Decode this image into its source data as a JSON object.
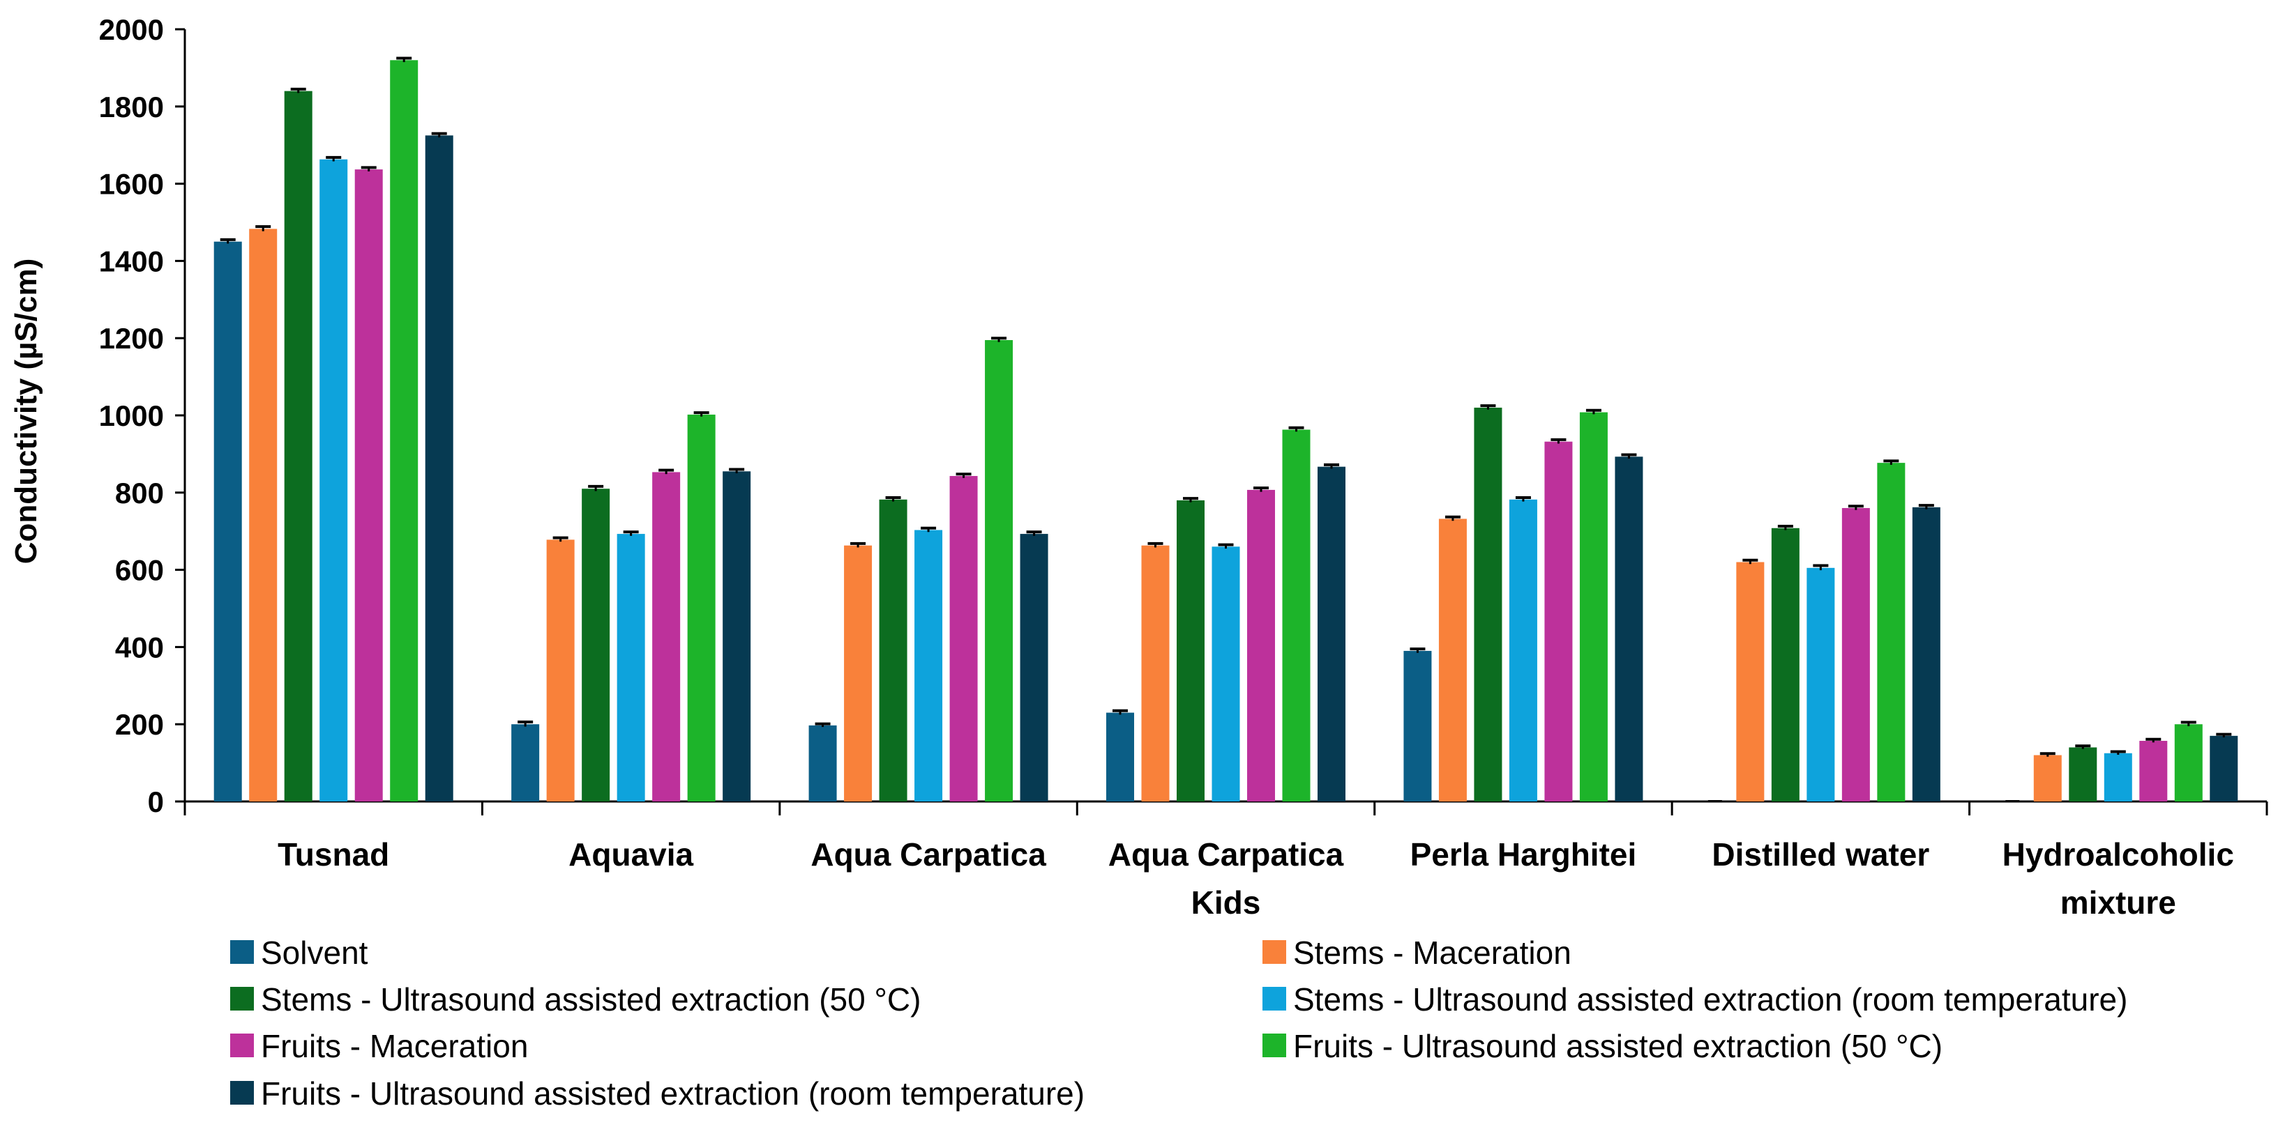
{
  "chart_data": {
    "type": "bar",
    "title": "",
    "xlabel": "",
    "ylabel": "Conductivity (µS/cm)",
    "ylim": [
      0,
      2000
    ],
    "yticks": [
      0,
      200,
      400,
      600,
      800,
      1000,
      1200,
      1400,
      1600,
      1800,
      2000
    ],
    "grid": false,
    "legend_position": "bottom",
    "categories": [
      [
        "Tusnad"
      ],
      [
        "Aquavia"
      ],
      [
        "Aqua Carpatica"
      ],
      [
        "Aqua Carpatica",
        "Kids"
      ],
      [
        "Perla Harghitei"
      ],
      [
        "Distilled water"
      ],
      [
        "Hydroalcoholic",
        "mixture"
      ]
    ],
    "series": [
      {
        "name": "Solvent",
        "color": "#0b5e86",
        "values": [
          1450,
          200,
          197,
          230,
          390,
          0,
          0
        ],
        "errors": [
          5,
          6,
          4,
          5,
          5,
          0,
          0
        ]
      },
      {
        "name": "Stems - Maceration",
        "color": "#f9813a",
        "values": [
          1483,
          678,
          663,
          663,
          732,
          620,
          120
        ],
        "errors": [
          6,
          5,
          5,
          5,
          5,
          5,
          4
        ]
      },
      {
        "name": "Stems - Ultrasound assisted extraction (50 °C)",
        "color": "#0c6d20",
        "values": [
          1840,
          810,
          782,
          780,
          1020,
          708,
          140
        ],
        "errors": [
          5,
          6,
          5,
          5,
          5,
          5,
          4
        ]
      },
      {
        "name": "Stems - Ultrasound assisted extraction (room temperature)",
        "color": "#0ea3dc",
        "values": [
          1663,
          693,
          703,
          660,
          782,
          605,
          125
        ],
        "errors": [
          5,
          5,
          5,
          5,
          5,
          6,
          4
        ]
      },
      {
        "name": "Fruits - Maceration",
        "color": "#bd319b",
        "values": [
          1637,
          853,
          843,
          807,
          932,
          760,
          157
        ],
        "errors": [
          5,
          5,
          5,
          5,
          5,
          5,
          4
        ]
      },
      {
        "name": "Fruits - Ultrasound assisted extraction (50 °C)",
        "color": "#1db42a",
        "values": [
          1920,
          1002,
          1195,
          963,
          1008,
          877,
          200
        ],
        "errors": [
          5,
          5,
          5,
          5,
          5,
          5,
          5
        ]
      },
      {
        "name": "Fruits - Ultrasound assisted extraction (room temperature)",
        "color": "#063a52",
        "values": [
          1725,
          855,
          693,
          867,
          893,
          762,
          170
        ],
        "errors": [
          5,
          5,
          5,
          5,
          5,
          5,
          4
        ]
      }
    ]
  }
}
